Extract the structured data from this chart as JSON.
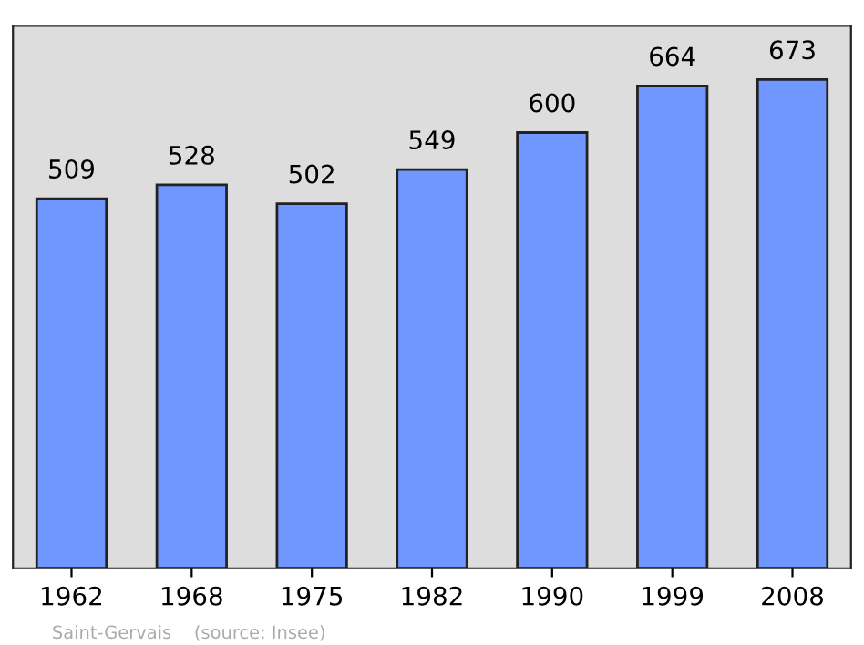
{
  "chart_data": {
    "type": "bar",
    "categories": [
      "1962",
      "1968",
      "1975",
      "1982",
      "1990",
      "1999",
      "2008"
    ],
    "values": [
      509,
      528,
      502,
      549,
      600,
      664,
      673
    ],
    "color": "#7096ff",
    "data_labels": true,
    "grid": false,
    "legend": false,
    "annotations": [
      "Saint-Gervais    (source: Insee)"
    ]
  }
}
